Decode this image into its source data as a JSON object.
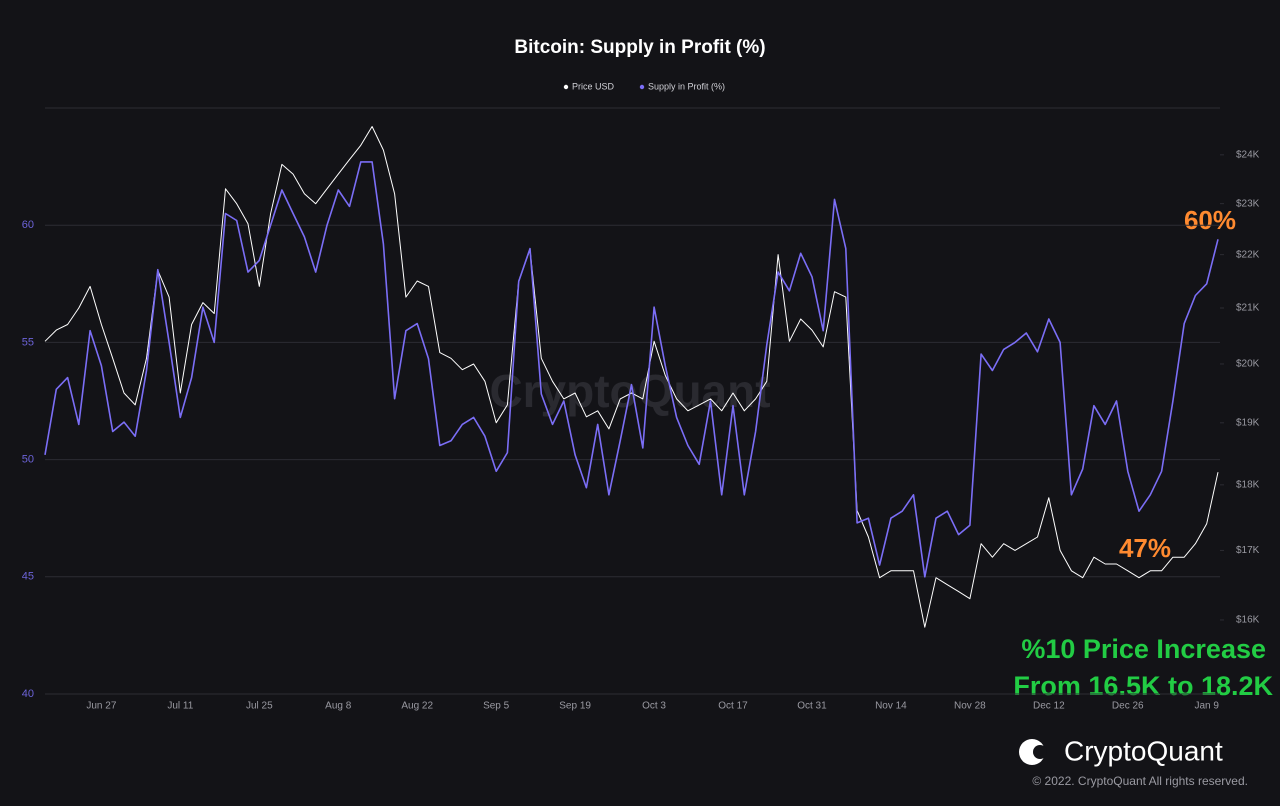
{
  "chart_data": {
    "type": "line",
    "title": "Bitcoin: Supply in Profit (%)",
    "legend": "top",
    "grid": true,
    "y2scale": "log",
    "categories": [
      null,
      null,
      null,
      null,
      null,
      "Jun 27",
      null,
      null,
      null,
      null,
      null,
      null,
      "Jul 11",
      null,
      null,
      null,
      null,
      null,
      null,
      "Jul 25",
      null,
      null,
      null,
      null,
      null,
      null,
      "Aug 8",
      null,
      null,
      null,
      null,
      null,
      null,
      "Aug 22",
      null,
      null,
      null,
      null,
      null,
      null,
      "Sep 5",
      null,
      null,
      null,
      null,
      null,
      null,
      "Sep 19",
      null,
      null,
      null,
      null,
      null,
      null,
      "Oct 3",
      null,
      null,
      null,
      null,
      null,
      null,
      "Oct 17",
      null,
      null,
      null,
      null,
      null,
      null,
      "Oct 31",
      null,
      null,
      null,
      null,
      null,
      null,
      "Nov 14",
      null,
      null,
      null,
      null,
      null,
      null,
      "Nov 28",
      null,
      null,
      null,
      null,
      null,
      null,
      "Dec 12",
      null,
      null,
      null,
      null,
      null,
      null,
      "Dec 26",
      null,
      null,
      null,
      null,
      null,
      null,
      "Jan 9",
      null
    ],
    "series": [
      {
        "name": "Price USD",
        "color": "#ffffff",
        "axis": "y2",
        "values": [
          20400,
          20600,
          20700,
          21000,
          21400,
          20700,
          20100,
          19500,
          19300,
          20100,
          21700,
          21200,
          19500,
          20700,
          21100,
          20900,
          23300,
          23000,
          22600,
          21400,
          22800,
          23800,
          23600,
          23200,
          23000,
          23300,
          23600,
          23900,
          24200,
          24600,
          24100,
          23200,
          21200,
          21500,
          21400,
          20200,
          20100,
          19900,
          20000,
          19700,
          19000,
          19300,
          21500,
          22100,
          20100,
          19700,
          19400,
          19500,
          19100,
          19200,
          18900,
          19400,
          19500,
          19400,
          20400,
          19800,
          19400,
          19200,
          19300,
          19400,
          19200,
          19500,
          19200,
          19400,
          19700,
          22000,
          20400,
          20800,
          20600,
          20300,
          21300,
          21200,
          17600,
          17200,
          16600,
          16700,
          16700,
          16700,
          15900,
          16600,
          16500,
          16400,
          16300,
          17100,
          16900,
          17100,
          17000,
          17100,
          17200,
          17800,
          17000,
          16700,
          16600,
          16900,
          16800,
          16800,
          16700,
          16600,
          16700,
          16700,
          16900,
          16900,
          17100,
          17400,
          18200
        ]
      },
      {
        "name": "Supply in Profit (%)",
        "color": "#7b6ef6",
        "values": [
          50.2,
          53,
          53.5,
          51.5,
          55.5,
          54,
          51.2,
          51.6,
          51,
          53.8,
          58.1,
          55,
          51.8,
          53.5,
          56.5,
          55,
          60.5,
          60.2,
          58,
          58.5,
          60,
          61.5,
          60.5,
          59.5,
          58,
          60,
          61.5,
          60.8,
          62.7,
          62.7,
          59.2,
          52.6,
          55.5,
          55.8,
          54.3,
          50.6,
          50.8,
          51.5,
          51.8,
          51,
          49.5,
          50.3,
          57.6,
          59,
          52.8,
          51.5,
          52.5,
          50.2,
          48.8,
          51.5,
          48.5,
          50.8,
          53.2,
          50.5,
          56.5,
          54,
          51.8,
          50.6,
          49.8,
          52.5,
          48.5,
          52.3,
          48.5,
          51.2,
          54.9,
          58,
          57.2,
          58.8,
          57.8,
          55.5,
          61.1,
          59,
          47.3,
          47.5,
          45.5,
          47.5,
          47.8,
          48.5,
          45,
          47.5,
          47.8,
          46.8,
          47.2,
          54.5,
          53.8,
          54.7,
          55,
          55.4,
          54.6,
          56,
          55,
          48.5,
          49.6,
          52.3,
          51.5,
          52.5,
          49.5,
          47.8,
          48.5,
          49.5,
          52.5,
          55.8,
          57,
          57.5,
          59.4
        ]
      }
    ],
    "ylim": [
      40,
      65
    ],
    "yticks": [
      40,
      45,
      50,
      55,
      60
    ],
    "y2lim": [
      15000,
      25000
    ],
    "y2ticks": [
      {
        "value": 16000,
        "label": "$16K"
      },
      {
        "value": 17000,
        "label": "$17K"
      },
      {
        "value": 18000,
        "label": "$18K"
      },
      {
        "value": 19000,
        "label": "$19K"
      },
      {
        "value": 20000,
        "label": "$20K"
      },
      {
        "value": 21000,
        "label": "$21K"
      },
      {
        "value": 22000,
        "label": "$22K"
      },
      {
        "value": 23000,
        "label": "$23K"
      },
      {
        "value": 24000,
        "label": "$24K"
      }
    ],
    "annotations": [
      "60%",
      "47%",
      "%10 Price Increase",
      "From 16.5K to 18.2K"
    ],
    "watermark": "CryptoQuant",
    "brand": "CryptoQuant",
    "copyright": "© 2022. CryptoQuant All rights reserved."
  }
}
